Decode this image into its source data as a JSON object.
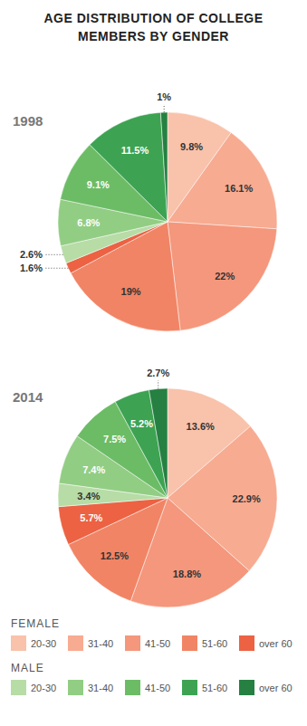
{
  "title": "AGE DISTRIBUTION OF COLLEGE MEMBERS BY GENDER",
  "legend": "bottom",
  "chart_data": [
    {
      "type": "pie",
      "title": "1998",
      "data_labels": true,
      "series": [
        {
          "name": "FEMALE",
          "categories": [
            "20-30",
            "31-40",
            "41-50",
            "51-60",
            "over 60"
          ],
          "values": [
            9.8,
            16.1,
            22,
            19,
            1.6
          ],
          "value_labels": [
            "9.8%",
            "16.1%",
            "22%",
            "19%",
            "1.6%"
          ],
          "colors": [
            "#f9c2aa",
            "#f7ab91",
            "#f4977c",
            "#f18465",
            "#ec6243"
          ]
        },
        {
          "name": "MALE",
          "categories": [
            "20-30",
            "31-40",
            "41-50",
            "51-60",
            "over 60"
          ],
          "values": [
            2.6,
            6.8,
            9.1,
            11.5,
            1
          ],
          "value_labels": [
            "2.6%",
            "6.8%",
            "9.1%",
            "11.5%",
            "1%"
          ],
          "colors": [
            "#b7dca6",
            "#92cd84",
            "#6cbc66",
            "#3da352",
            "#258041"
          ]
        }
      ]
    },
    {
      "type": "pie",
      "title": "2014",
      "data_labels": true,
      "series": [
        {
          "name": "FEMALE",
          "categories": [
            "20-30",
            "31-40",
            "41-50",
            "51-60",
            "over 60"
          ],
          "values": [
            13.6,
            22.9,
            18.8,
            12.5,
            5.7
          ],
          "value_labels": [
            "13.6%",
            "22.9%",
            "18.8%",
            "12.5%",
            "5.7%"
          ],
          "colors": [
            "#f9c2aa",
            "#f7ab91",
            "#f4977c",
            "#f18465",
            "#ec6243"
          ]
        },
        {
          "name": "MALE",
          "categories": [
            "20-30",
            "31-40",
            "41-50",
            "51-60",
            "over 60"
          ],
          "values": [
            3.4,
            7.4,
            7.5,
            5.2,
            2.7
          ],
          "value_labels": [
            "3.4%",
            "7.4%",
            "7.5%",
            "5.2%",
            "2.7%"
          ],
          "colors": [
            "#b7dca6",
            "#92cd84",
            "#6cbc66",
            "#3da352",
            "#258041"
          ]
        }
      ]
    }
  ]
}
